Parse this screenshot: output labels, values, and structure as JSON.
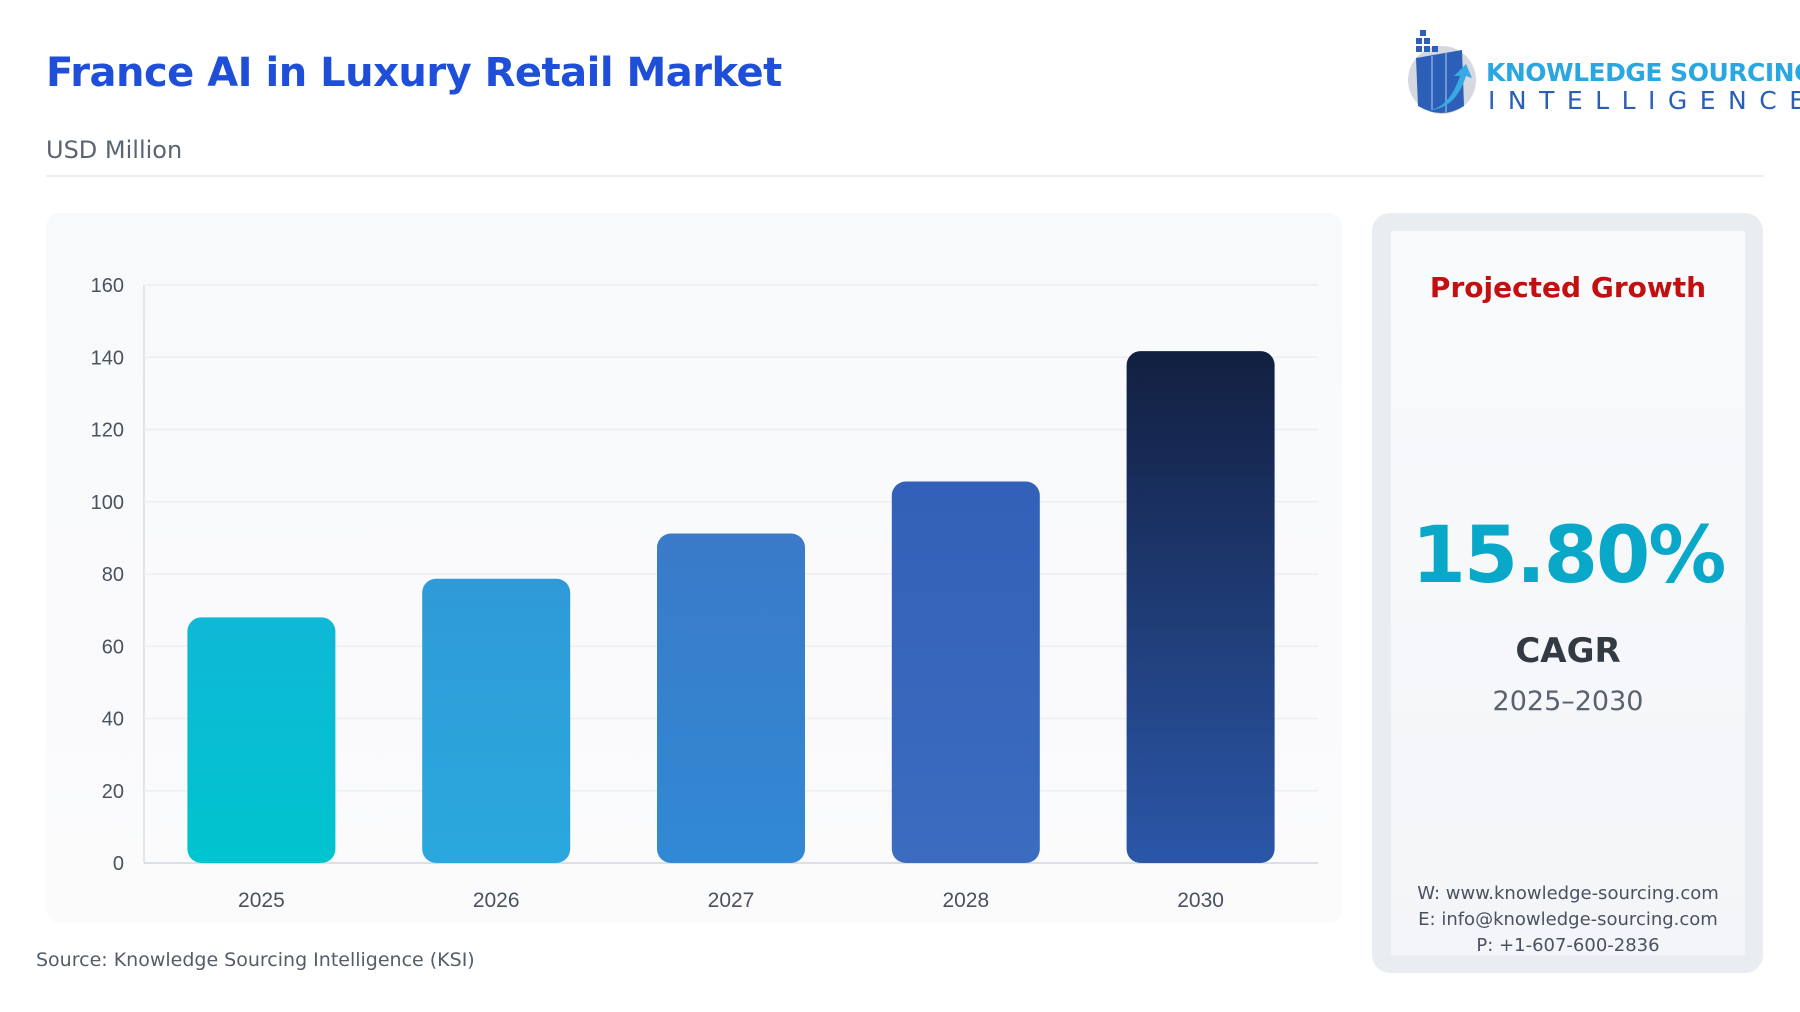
{
  "header": {
    "title": "France AI in Luxury Retail Market",
    "subtitle": "USD Million"
  },
  "logo": {
    "line1": "KNOWLEDGE SOURCING",
    "line2": "INTELLIGENCE"
  },
  "source": "Source: Knowledge Sourcing Intelligence (KSI)",
  "panel": {
    "title": "Projected Growth",
    "value": "15.80%",
    "metric": "CAGR",
    "period": "2025–2030",
    "contacts": [
      "W: www.knowledge-sourcing.com",
      "E: info@knowledge-sourcing.com",
      "P: +1-607-600-2836"
    ]
  },
  "colors": {
    "title": "#1f4fd8",
    "projected": "#c30f0f",
    "cagr": "#0aa8c8"
  },
  "chart_data": {
    "type": "bar",
    "title": "",
    "xlabel": "",
    "ylabel": "",
    "categories": [
      "2025",
      "2026",
      "2027",
      "2028",
      "2030"
    ],
    "values": [
      68.0,
      78.7,
      91.2,
      105.6,
      141.7
    ],
    "ylim": [
      0,
      160
    ],
    "yticks": [
      "0",
      "20",
      "40",
      "60",
      "80",
      "100",
      "120",
      "140",
      "160"
    ],
    "grid": true,
    "bar_colors": [
      [
        "#0fb8d6",
        "#00c4cf"
      ],
      [
        "#2f9ad8",
        "#2aa8dd"
      ],
      [
        "#3a7ac9",
        "#3189d4"
      ],
      [
        "#3360b8",
        "#3b6cc0"
      ],
      [
        "#121f40",
        "#2b57a8"
      ]
    ]
  }
}
